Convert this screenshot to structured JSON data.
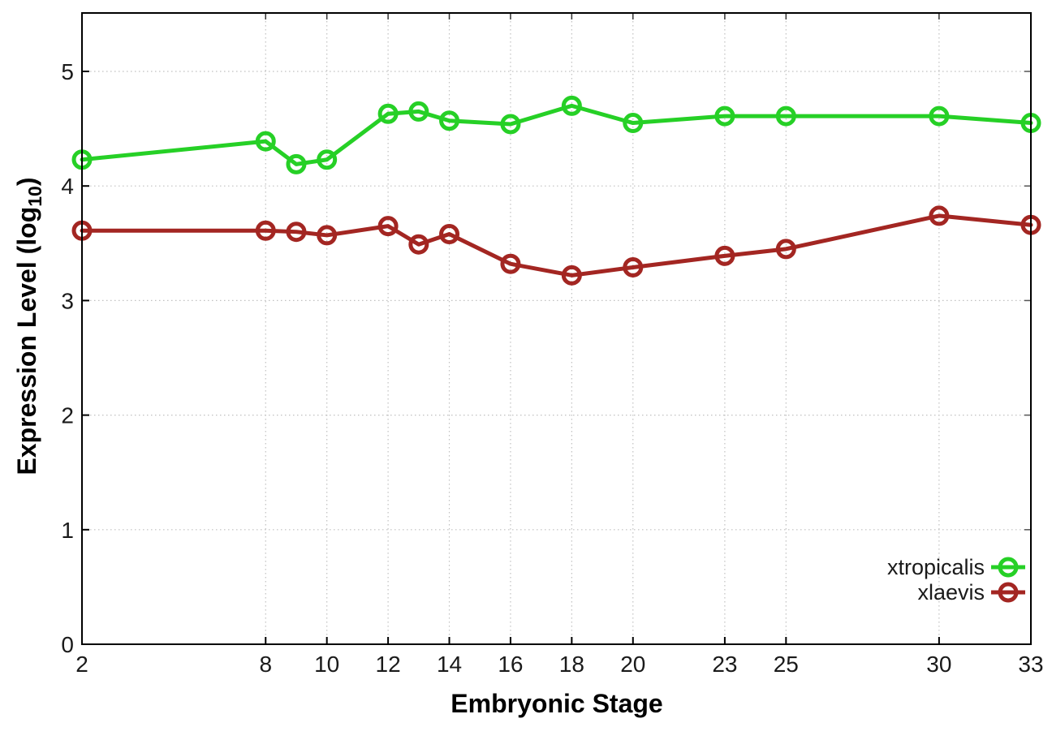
{
  "page": {
    "background_color": "#ffffff"
  },
  "chart_data": {
    "type": "line",
    "title": "",
    "xlabel": "Embryonic Stage",
    "ylabel_parts": {
      "prefix": "Expression Level (log",
      "subscript": "10",
      "suffix": ")"
    },
    "x": [
      2,
      8,
      9,
      10,
      12,
      13,
      14,
      16,
      18,
      20,
      23,
      25,
      30,
      33
    ],
    "x_ticks": [
      2,
      8,
      10,
      12,
      14,
      16,
      18,
      20,
      23,
      25,
      30,
      33
    ],
    "y_ticks": [
      0,
      1,
      2,
      3,
      4,
      5
    ],
    "xlim": [
      2,
      33
    ],
    "ylim": [
      0,
      5.51
    ],
    "grid": true,
    "grid_style": "dotted",
    "legend": {
      "position": "inside-bottom-right",
      "entries": [
        "xtropicalis",
        "xlaevis"
      ]
    },
    "series": [
      {
        "name": "xtropicalis",
        "color": "#26d026",
        "marker": "open-circle",
        "values": [
          4.23,
          4.39,
          4.19,
          4.23,
          4.63,
          4.65,
          4.57,
          4.54,
          4.7,
          4.55,
          4.61,
          4.61,
          4.61,
          4.55
        ]
      },
      {
        "name": "xlaevis",
        "color": "#a32622",
        "marker": "open-circle",
        "values": [
          3.61,
          3.61,
          3.6,
          3.57,
          3.65,
          3.49,
          3.58,
          3.32,
          3.22,
          3.29,
          3.39,
          3.45,
          3.74,
          3.66
        ]
      }
    ],
    "axis_color": "#000000",
    "grid_color": "#c0c0c0"
  }
}
